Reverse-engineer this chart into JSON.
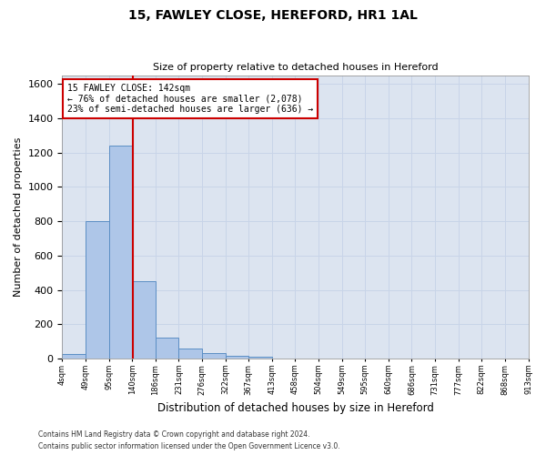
{
  "title": "15, FAWLEY CLOSE, HEREFORD, HR1 1AL",
  "subtitle": "Size of property relative to detached houses in Hereford",
  "xlabel": "Distribution of detached houses by size in Hereford",
  "ylabel": "Number of detached properties",
  "footnote1": "Contains HM Land Registry data © Crown copyright and database right 2024.",
  "footnote2": "Contains public sector information licensed under the Open Government Licence v3.0.",
  "bar_color": "#aec6e8",
  "bar_edge_color": "#5b8ec4",
  "grid_color": "#c8d4e8",
  "annotation_box_color": "#cc0000",
  "vline_color": "#cc0000",
  "background_color": "#dce4f0",
  "bin_labels": [
    "4sqm",
    "49sqm",
    "95sqm",
    "140sqm",
    "186sqm",
    "231sqm",
    "276sqm",
    "322sqm",
    "367sqm",
    "413sqm",
    "458sqm",
    "504sqm",
    "549sqm",
    "595sqm",
    "640sqm",
    "686sqm",
    "731sqm",
    "777sqm",
    "822sqm",
    "868sqm",
    "913sqm"
  ],
  "bar_heights": [
    25,
    800,
    1240,
    450,
    125,
    60,
    30,
    18,
    10,
    0,
    0,
    0,
    0,
    0,
    0,
    0,
    0,
    0,
    0,
    0
  ],
  "n_bins": 20,
  "property_label": "15 FAWLEY CLOSE: 142sqm",
  "pct_smaller": "76% of detached houses are smaller (2,078)",
  "pct_larger": "23% of semi-detached houses are larger (636)",
  "vline_x_index": 3.05,
  "ylim": [
    0,
    1650
  ],
  "yticks": [
    0,
    200,
    400,
    600,
    800,
    1000,
    1200,
    1400,
    1600
  ]
}
